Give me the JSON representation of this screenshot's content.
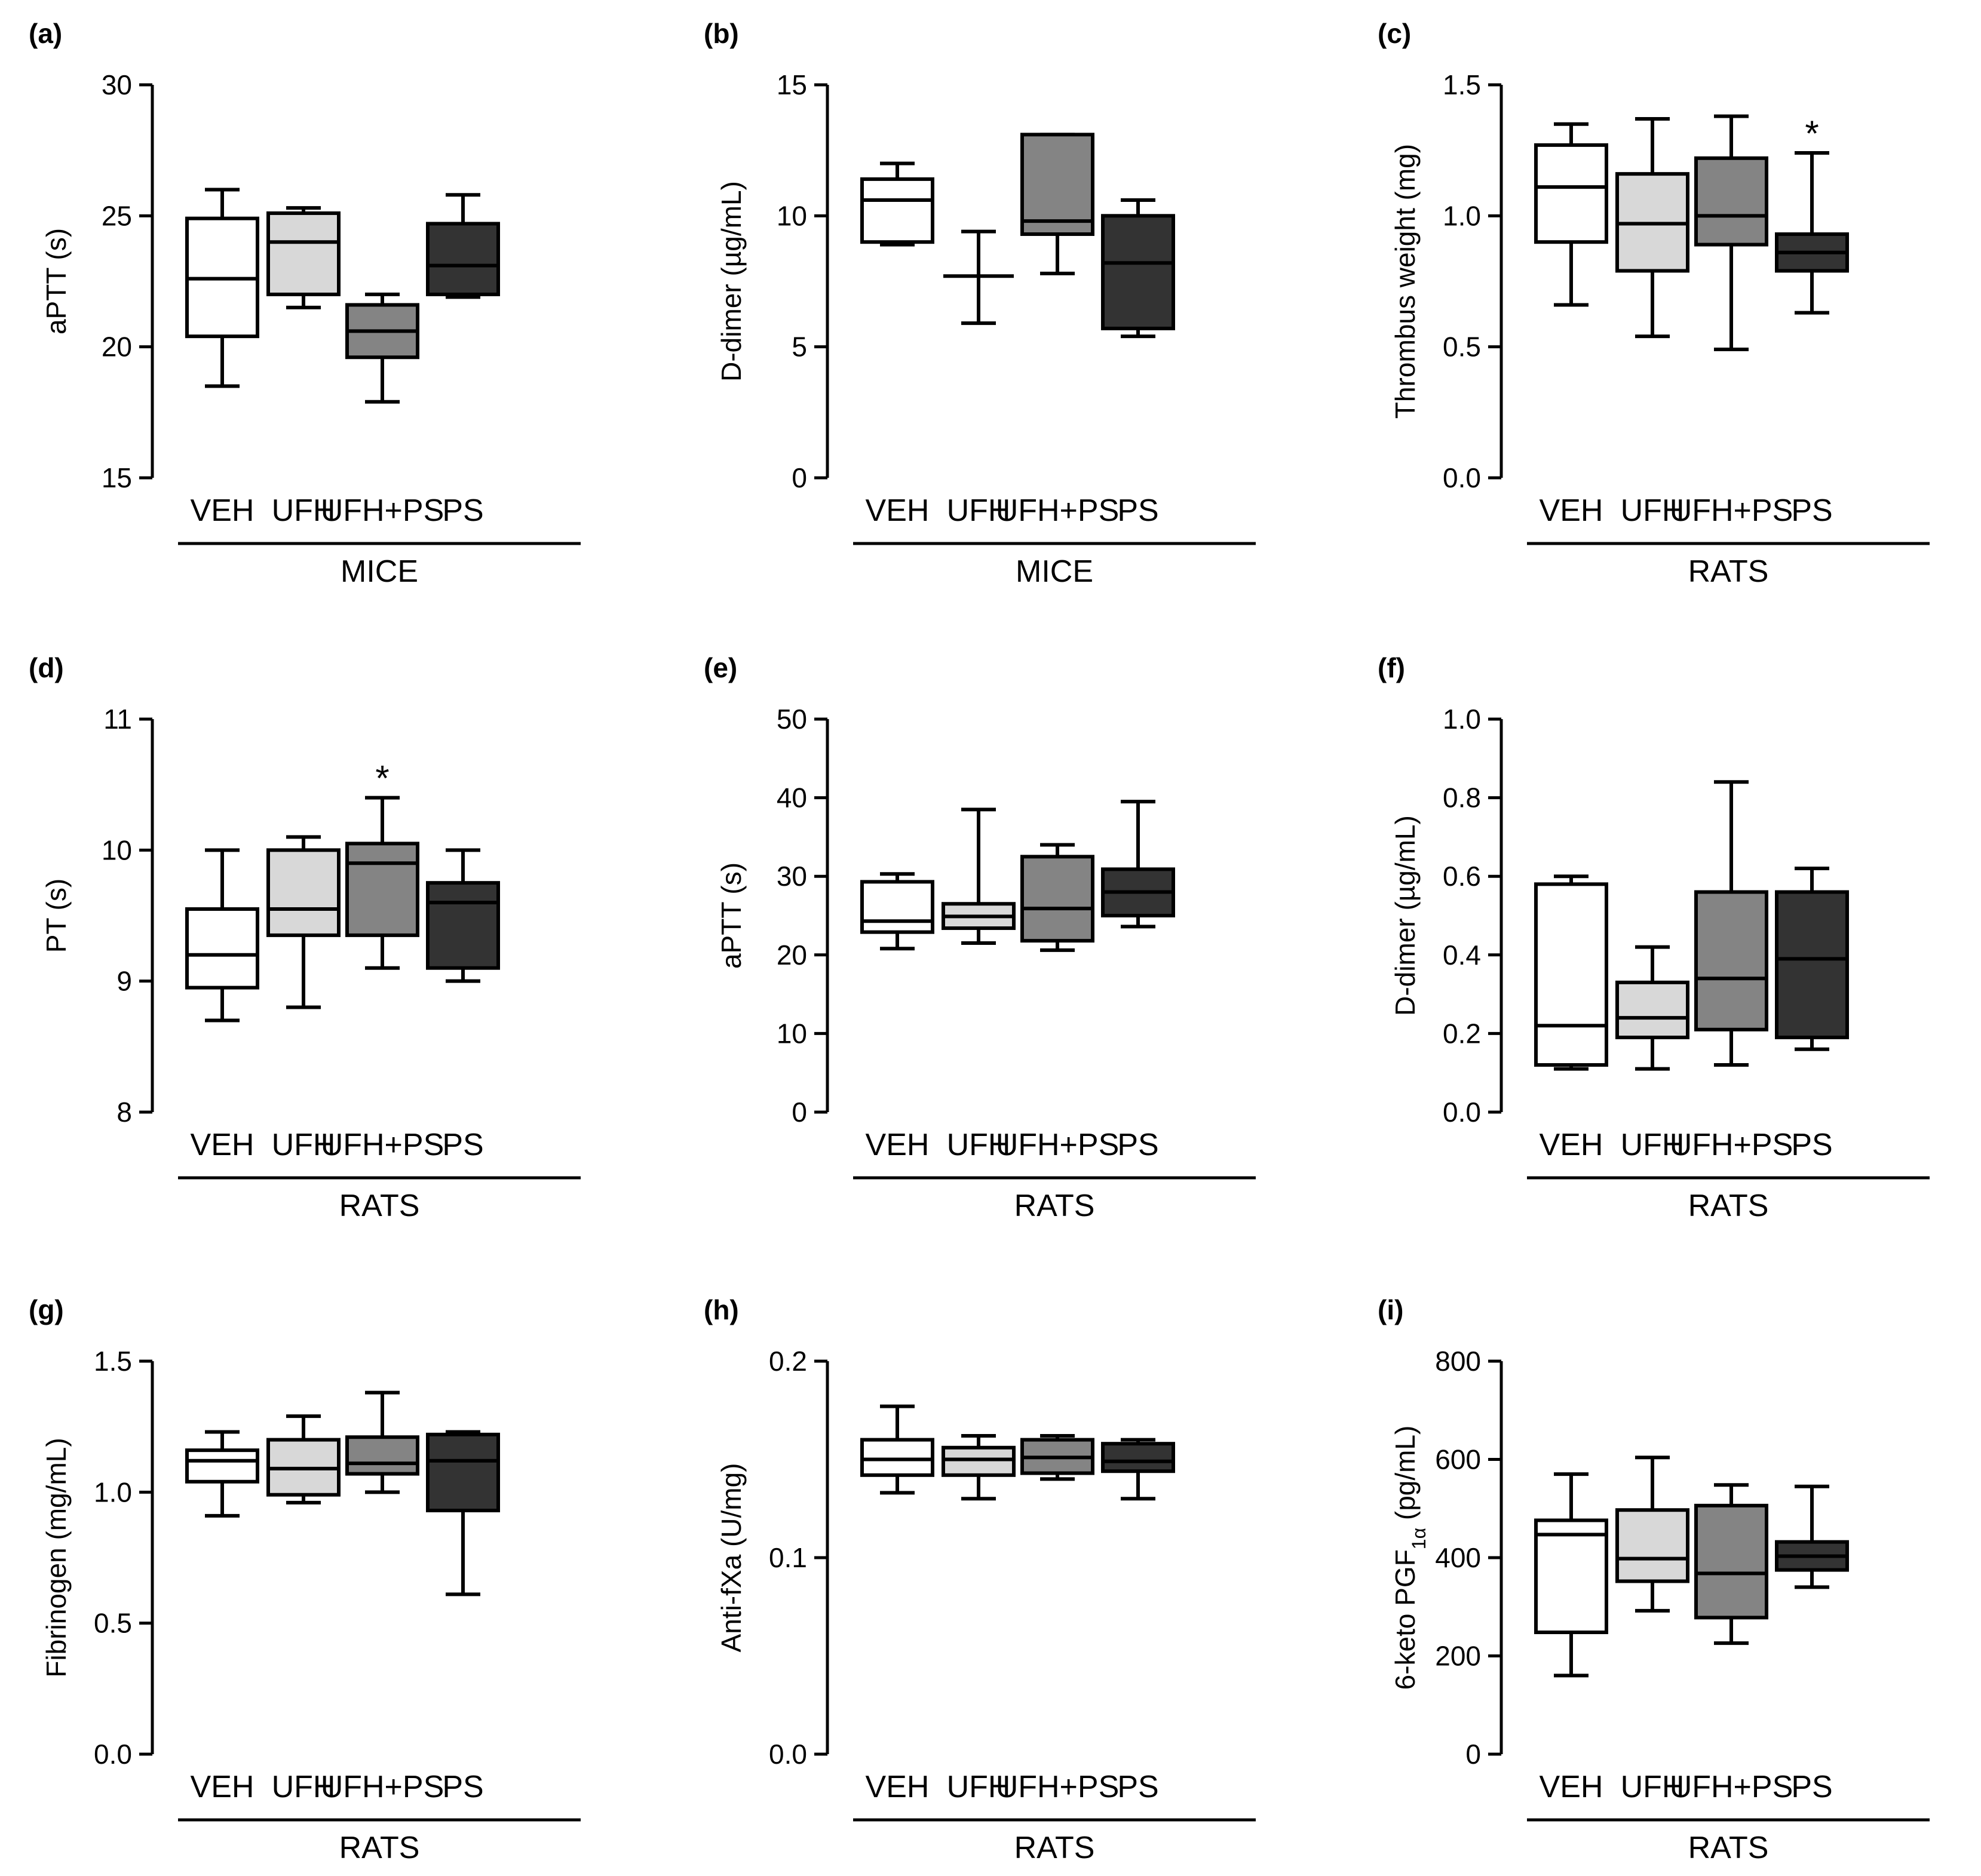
{
  "figure": {
    "colors": {
      "VEH": "#ffffff",
      "UFH": "#d8d8d8",
      "UFH+PS": "#848484",
      "PS": "#333333",
      "line": "#000000"
    },
    "categories": [
      "VEH",
      "UFH",
      "UFH+PS",
      "PS"
    ]
  },
  "chart_data": [
    {
      "panel": "(a)",
      "type": "boxplot",
      "ylabel": "aPTT (s)",
      "group": "MICE",
      "ylim": [
        15,
        30
      ],
      "yticks": [
        15,
        20,
        25,
        30
      ],
      "ytick_labels": [
        "15",
        "20",
        "25",
        "30"
      ],
      "categories": [
        "VEH",
        "UFH",
        "UFH+PS",
        "PS"
      ],
      "boxes": [
        {
          "min": 18.5,
          "q1": 20.4,
          "median": 22.6,
          "q3": 24.9,
          "max": 26.0
        },
        {
          "min": 21.5,
          "q1": 22.0,
          "median": 24.0,
          "q3": 25.1,
          "max": 25.3
        },
        {
          "min": 17.9,
          "q1": 19.6,
          "median": 20.6,
          "q3": 21.6,
          "max": 22.0
        },
        {
          "min": 21.9,
          "q1": 22.0,
          "median": 23.1,
          "q3": 24.7,
          "max": 25.8
        }
      ],
      "annotations": []
    },
    {
      "panel": "(b)",
      "type": "boxplot",
      "ylabel": "D-dimer (µg/mL)",
      "group": "MICE",
      "ylim": [
        0,
        15
      ],
      "yticks": [
        0,
        5,
        10,
        15
      ],
      "ytick_labels": [
        "0",
        "5",
        "10",
        "15"
      ],
      "categories": [
        "VEH",
        "UFH",
        "UFH+PS",
        "PS"
      ],
      "boxes": [
        {
          "min": 8.9,
          "q1": 9.0,
          "median": 10.6,
          "q3": 11.4,
          "max": 12.0
        },
        {
          "min": 5.9,
          "q1": 7.7,
          "median": 7.7,
          "q3": 7.7,
          "max": 9.4
        },
        {
          "min": 7.8,
          "q1": 9.3,
          "median": 9.8,
          "q3": 13.1,
          "max": 13.1
        },
        {
          "min": 5.4,
          "q1": 5.7,
          "median": 8.2,
          "q3": 10.0,
          "max": 10.6
        }
      ],
      "annotations": []
    },
    {
      "panel": "(c)",
      "type": "boxplot",
      "ylabel": "Thrombus weight (mg)",
      "group": "RATS",
      "ylim": [
        0,
        1.5
      ],
      "yticks": [
        0,
        0.5,
        1.0,
        1.5
      ],
      "ytick_labels": [
        "0.0",
        "0.5",
        "1.0",
        "1.5"
      ],
      "categories": [
        "VEH",
        "UFH",
        "UFH+PS",
        "PS"
      ],
      "boxes": [
        {
          "min": 0.66,
          "q1": 0.9,
          "median": 1.11,
          "q3": 1.27,
          "max": 1.35
        },
        {
          "min": 0.54,
          "q1": 0.79,
          "median": 0.97,
          "q3": 1.16,
          "max": 1.37
        },
        {
          "min": 0.49,
          "q1": 0.89,
          "median": 1.0,
          "q3": 1.22,
          "max": 1.38
        },
        {
          "min": 0.63,
          "q1": 0.79,
          "median": 0.86,
          "q3": 0.93,
          "max": 1.24
        }
      ],
      "annotations": [
        {
          "category": "PS",
          "text": "*"
        }
      ]
    },
    {
      "panel": "(d)",
      "type": "boxplot",
      "ylabel": "PT (s)",
      "group": "RATS",
      "ylim": [
        8,
        11
      ],
      "yticks": [
        8,
        9,
        10,
        11
      ],
      "ytick_labels": [
        "8",
        "9",
        "10",
        "11"
      ],
      "categories": [
        "VEH",
        "UFH",
        "UFH+PS",
        "PS"
      ],
      "boxes": [
        {
          "min": 8.7,
          "q1": 8.95,
          "median": 9.2,
          "q3": 9.55,
          "max": 10.0
        },
        {
          "min": 8.8,
          "q1": 9.35,
          "median": 9.55,
          "q3": 10.0,
          "max": 10.1
        },
        {
          "min": 9.1,
          "q1": 9.35,
          "median": 9.9,
          "q3": 10.05,
          "max": 10.4
        },
        {
          "min": 9.0,
          "q1": 9.1,
          "median": 9.6,
          "q3": 9.75,
          "max": 10.0
        }
      ],
      "annotations": [
        {
          "category": "UFH+PS",
          "text": "*"
        }
      ]
    },
    {
      "panel": "(e)",
      "type": "boxplot",
      "ylabel": "aPTT (s)",
      "group": "RATS",
      "ylim": [
        0,
        50
      ],
      "yticks": [
        0,
        10,
        20,
        30,
        40,
        50
      ],
      "ytick_labels": [
        "0",
        "10",
        "20",
        "30",
        "40",
        "50"
      ],
      "categories": [
        "VEH",
        "UFH",
        "UFH+PS",
        "PS"
      ],
      "boxes": [
        {
          "min": 20.8,
          "q1": 22.9,
          "median": 24.3,
          "q3": 29.3,
          "max": 30.3
        },
        {
          "min": 21.5,
          "q1": 23.4,
          "median": 24.9,
          "q3": 26.5,
          "max": 38.5
        },
        {
          "min": 20.6,
          "q1": 21.8,
          "median": 25.9,
          "q3": 32.5,
          "max": 34.0
        },
        {
          "min": 23.6,
          "q1": 25.0,
          "median": 28.0,
          "q3": 30.9,
          "max": 39.5
        }
      ],
      "annotations": []
    },
    {
      "panel": "(f)",
      "type": "boxplot",
      "ylabel": "D-dimer (µg/mL)",
      "group": "RATS",
      "ylim": [
        0,
        1.0
      ],
      "yticks": [
        0,
        0.2,
        0.4,
        0.6,
        0.8,
        1.0
      ],
      "ytick_labels": [
        "0.0",
        "0.2",
        "0.4",
        "0.6",
        "0.8",
        "1.0"
      ],
      "categories": [
        "VEH",
        "UFH",
        "UFH+PS",
        "PS"
      ],
      "boxes": [
        {
          "min": 0.11,
          "q1": 0.12,
          "median": 0.22,
          "q3": 0.58,
          "max": 0.6
        },
        {
          "min": 0.11,
          "q1": 0.19,
          "median": 0.24,
          "q3": 0.33,
          "max": 0.42
        },
        {
          "min": 0.12,
          "q1": 0.21,
          "median": 0.34,
          "q3": 0.56,
          "max": 0.84
        },
        {
          "min": 0.16,
          "q1": 0.19,
          "median": 0.39,
          "q3": 0.56,
          "max": 0.62
        }
      ],
      "annotations": []
    },
    {
      "panel": "(g)",
      "type": "boxplot",
      "ylabel": "Fibrinogen (mg/mL)",
      "group": "RATS",
      "ylim": [
        0,
        1.5
      ],
      "yticks": [
        0,
        0.5,
        1.0,
        1.5
      ],
      "ytick_labels": [
        "0.0",
        "0.5",
        "1.0",
        "1.5"
      ],
      "categories": [
        "VEH",
        "UFH",
        "UFH+PS",
        "PS"
      ],
      "boxes": [
        {
          "min": 0.91,
          "q1": 1.04,
          "median": 1.12,
          "q3": 1.16,
          "max": 1.23
        },
        {
          "min": 0.96,
          "q1": 0.99,
          "median": 1.09,
          "q3": 1.2,
          "max": 1.29
        },
        {
          "min": 1.0,
          "q1": 1.07,
          "median": 1.11,
          "q3": 1.21,
          "max": 1.38
        },
        {
          "min": 0.61,
          "q1": 0.93,
          "median": 1.12,
          "q3": 1.22,
          "max": 1.23
        }
      ],
      "annotations": []
    },
    {
      "panel": "(h)",
      "type": "boxplot",
      "ylabel": "Anti-fXa (U/mg)",
      "group": "RATS",
      "ylim": [
        0,
        0.2
      ],
      "yticks": [
        0,
        0.1,
        0.2
      ],
      "ytick_labels": [
        "0.0",
        "0.1",
        "0.2"
      ],
      "categories": [
        "VEH",
        "UFH",
        "UFH+PS",
        "PS"
      ],
      "boxes": [
        {
          "min": 0.133,
          "q1": 0.142,
          "median": 0.15,
          "q3": 0.16,
          "max": 0.177
        },
        {
          "min": 0.13,
          "q1": 0.142,
          "median": 0.15,
          "q3": 0.156,
          "max": 0.162
        },
        {
          "min": 0.14,
          "q1": 0.143,
          "median": 0.151,
          "q3": 0.16,
          "max": 0.162
        },
        {
          "min": 0.13,
          "q1": 0.144,
          "median": 0.149,
          "q3": 0.158,
          "max": 0.16
        }
      ],
      "annotations": []
    },
    {
      "panel": "(i)",
      "type": "boxplot",
      "ylabel": "6-keto PGF1α (pg/mL)",
      "ylabel_parts": {
        "main": "6-keto PGF",
        "sub": "1α",
        "unit": " (pg/mL)"
      },
      "group": "RATS",
      "ylim": [
        0,
        800
      ],
      "yticks": [
        0,
        200,
        400,
        600,
        800
      ],
      "ytick_labels": [
        "0",
        "200",
        "400",
        "600",
        "800"
      ],
      "categories": [
        "VEH",
        "UFH",
        "UFH+PS",
        "PS"
      ],
      "boxes": [
        {
          "min": 160,
          "q1": 248,
          "median": 447,
          "q3": 476,
          "max": 570
        },
        {
          "min": 292,
          "q1": 352,
          "median": 398,
          "q3": 497,
          "max": 604
        },
        {
          "min": 226,
          "q1": 278,
          "median": 368,
          "q3": 506,
          "max": 548
        },
        {
          "min": 340,
          "q1": 375,
          "median": 403,
          "q3": 432,
          "max": 545
        }
      ],
      "annotations": []
    }
  ]
}
